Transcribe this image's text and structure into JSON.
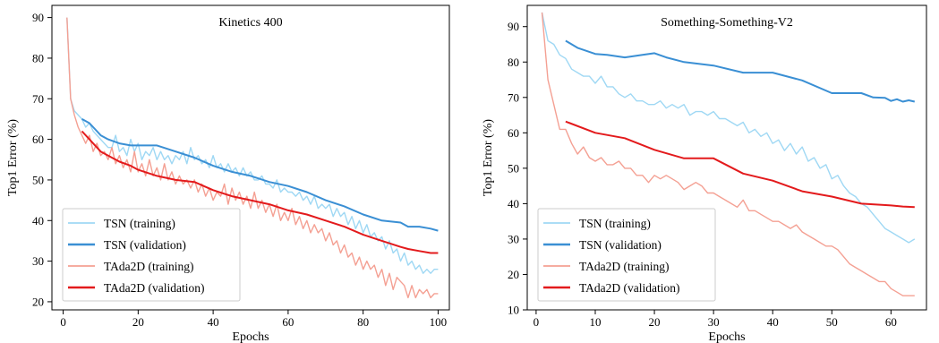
{
  "chart_data": [
    {
      "type": "line",
      "title": "Kinetics 400",
      "xlabel": "Epochs",
      "ylabel": "Top1 Error (%)",
      "xlim": [
        -3,
        103
      ],
      "ylim": [
        18,
        93
      ],
      "xticks": [
        0,
        20,
        40,
        60,
        80,
        100
      ],
      "yticks": [
        20,
        30,
        40,
        50,
        60,
        70,
        80,
        90
      ],
      "grid": false,
      "legend": "bottom-left",
      "series": [
        {
          "name": "TSN (training)",
          "color": "#9fd8f4",
          "width": 1.4,
          "x": [
            1,
            2,
            3,
            4,
            5,
            6,
            7,
            8,
            9,
            10,
            11,
            12,
            13,
            14,
            15,
            16,
            17,
            18,
            19,
            20,
            21,
            22,
            23,
            24,
            25,
            26,
            27,
            28,
            29,
            30,
            31,
            32,
            33,
            34,
            35,
            36,
            37,
            38,
            39,
            40,
            41,
            42,
            43,
            44,
            45,
            46,
            47,
            48,
            49,
            50,
            51,
            52,
            53,
            54,
            55,
            56,
            57,
            58,
            59,
            60,
            61,
            62,
            63,
            64,
            65,
            66,
            67,
            68,
            69,
            70,
            71,
            72,
            73,
            74,
            75,
            76,
            77,
            78,
            79,
            80,
            81,
            82,
            83,
            84,
            85,
            86,
            87,
            88,
            89,
            90,
            91,
            92,
            93,
            94,
            95,
            96,
            97,
            98,
            99,
            100
          ],
          "y": [
            90,
            70,
            67,
            66,
            65,
            63,
            64,
            62,
            61,
            60,
            59,
            58,
            58,
            61,
            57,
            58,
            56,
            60,
            57,
            59,
            55,
            57,
            56,
            58,
            55,
            57,
            55,
            56,
            54,
            56,
            55,
            57,
            54,
            58,
            55,
            56,
            54,
            55,
            53,
            56,
            53,
            54,
            52,
            54,
            52,
            53,
            51,
            53,
            51,
            52,
            50,
            50,
            51,
            49,
            49,
            48,
            50,
            47,
            48,
            47,
            47,
            46,
            47,
            45,
            46,
            44,
            46,
            43,
            44,
            43,
            44,
            41,
            43,
            41,
            42,
            39,
            41,
            38,
            40,
            37,
            39,
            36,
            37,
            35,
            36,
            33,
            35,
            32,
            33,
            30,
            32,
            29,
            30,
            28,
            29,
            27,
            28,
            27,
            28,
            28
          ]
        },
        {
          "name": "TSN (validation)",
          "color": "#3a8fd4",
          "width": 2,
          "x": [
            5,
            7,
            9,
            10,
            12,
            15,
            18,
            20,
            25,
            30,
            35,
            40,
            45,
            50,
            55,
            60,
            65,
            70,
            75,
            80,
            85,
            90,
            92,
            95,
            98,
            100
          ],
          "y": [
            65,
            64,
            62,
            61,
            60,
            59,
            58.5,
            58.5,
            58.5,
            57,
            55.5,
            53.5,
            52,
            51,
            49.5,
            48.5,
            47,
            45,
            43.5,
            41.5,
            40,
            39.5,
            38.5,
            38.5,
            38,
            37.5
          ]
        },
        {
          "name": "TAda2D (training)",
          "color": "#f4a093",
          "width": 1.4,
          "x": [
            1,
            2,
            3,
            4,
            5,
            6,
            7,
            8,
            9,
            10,
            11,
            12,
            13,
            14,
            15,
            16,
            17,
            18,
            19,
            20,
            21,
            22,
            23,
            24,
            25,
            26,
            27,
            28,
            29,
            30,
            31,
            32,
            33,
            34,
            35,
            36,
            37,
            38,
            39,
            40,
            41,
            42,
            43,
            44,
            45,
            46,
            47,
            48,
            49,
            50,
            51,
            52,
            53,
            54,
            55,
            56,
            57,
            58,
            59,
            60,
            61,
            62,
            63,
            64,
            65,
            66,
            67,
            68,
            69,
            70,
            71,
            72,
            73,
            74,
            75,
            76,
            77,
            78,
            79,
            80,
            81,
            82,
            83,
            84,
            85,
            86,
            87,
            88,
            89,
            90,
            91,
            92,
            93,
            94,
            95,
            96,
            97,
            98,
            99,
            100
          ],
          "y": [
            90,
            70,
            66,
            63,
            61,
            59,
            61,
            57,
            59,
            56,
            57,
            55,
            58,
            54,
            56,
            53,
            55,
            52,
            57,
            52,
            54,
            51,
            55,
            51,
            53,
            50,
            54,
            50,
            52,
            49,
            51,
            49,
            50,
            48,
            50,
            47,
            49,
            46,
            48,
            45,
            47,
            46,
            49,
            44,
            48,
            45,
            47,
            44,
            46,
            43,
            47,
            43,
            45,
            42,
            44,
            41,
            44,
            40,
            42,
            40,
            43,
            39,
            41,
            38,
            40,
            37,
            39,
            37,
            38,
            35,
            37,
            34,
            35,
            32,
            34,
            31,
            32,
            29,
            31,
            28,
            30,
            28,
            29,
            26,
            28,
            24,
            27,
            23,
            26,
            25,
            24,
            21,
            24,
            21,
            23,
            22,
            23,
            21,
            22,
            22
          ]
        },
        {
          "name": "TAda2D (validation)",
          "color": "#e31a1c",
          "width": 2,
          "x": [
            5,
            7,
            9,
            10,
            12,
            15,
            18,
            20,
            25,
            30,
            35,
            40,
            45,
            50,
            55,
            60,
            65,
            70,
            75,
            80,
            85,
            90,
            92,
            95,
            98,
            100
          ],
          "y": [
            62,
            60,
            58,
            57,
            56,
            54.5,
            53.5,
            52.5,
            51,
            50,
            49.5,
            47.5,
            46,
            45,
            44,
            42.5,
            41.5,
            40,
            38.5,
            36.5,
            35,
            33.5,
            33,
            32.5,
            32,
            32
          ]
        }
      ]
    },
    {
      "type": "line",
      "title": "Something-Something-V2",
      "xlabel": "Epochs",
      "ylabel": "Top1 Error (%)",
      "xlim": [
        -1.5,
        66
      ],
      "ylim": [
        10,
        96
      ],
      "xticks": [
        0,
        10,
        20,
        30,
        40,
        50,
        60
      ],
      "yticks": [
        10,
        20,
        30,
        40,
        50,
        60,
        70,
        80,
        90
      ],
      "grid": false,
      "legend": "bottom-left",
      "series": [
        {
          "name": "TSN (training)",
          "color": "#9fd8f4",
          "width": 1.4,
          "x": [
            1,
            2,
            3,
            4,
            5,
            6,
            7,
            8,
            9,
            10,
            11,
            12,
            13,
            14,
            15,
            16,
            17,
            18,
            19,
            20,
            21,
            22,
            23,
            24,
            25,
            26,
            27,
            28,
            29,
            30,
            31,
            32,
            33,
            34,
            35,
            36,
            37,
            38,
            39,
            40,
            41,
            42,
            43,
            44,
            45,
            46,
            47,
            48,
            49,
            50,
            51,
            52,
            53,
            54,
            55,
            56,
            57,
            58,
            59,
            60,
            61,
            62,
            63,
            64
          ],
          "y": [
            94,
            86,
            85,
            82,
            81,
            78,
            77,
            76,
            76,
            74,
            76,
            73,
            73,
            71,
            70,
            71,
            69,
            69,
            68,
            68,
            69,
            67,
            68,
            67,
            68,
            65,
            66,
            66,
            65,
            66,
            64,
            64,
            63,
            62,
            63,
            60,
            61,
            59,
            60,
            57,
            58,
            55,
            57,
            54,
            56,
            52,
            53,
            50,
            51,
            47,
            48,
            45,
            43,
            42,
            40,
            39,
            37,
            35,
            33,
            32,
            31,
            30,
            29,
            30
          ]
        },
        {
          "name": "TSN (validation)",
          "color": "#3a8fd4",
          "width": 2,
          "x": [
            5,
            7,
            10,
            12,
            15,
            18,
            20,
            22,
            25,
            30,
            35,
            40,
            45,
            50,
            52,
            55,
            57,
            59,
            60,
            61,
            62,
            63,
            64
          ],
          "y": [
            86,
            84,
            82.3,
            82,
            81.3,
            82,
            82.5,
            81.3,
            80,
            79,
            77,
            77,
            74.8,
            71.2,
            71.2,
            71.2,
            70,
            69.9,
            69,
            69.5,
            68.8,
            69.2,
            68.8
          ]
        },
        {
          "name": "TAda2D (training)",
          "color": "#f4a093",
          "width": 1.4,
          "x": [
            1,
            2,
            3,
            4,
            5,
            6,
            7,
            8,
            9,
            10,
            11,
            12,
            13,
            14,
            15,
            16,
            17,
            18,
            19,
            20,
            21,
            22,
            23,
            24,
            25,
            26,
            27,
            28,
            29,
            30,
            31,
            32,
            33,
            34,
            35,
            36,
            37,
            38,
            39,
            40,
            41,
            42,
            43,
            44,
            45,
            46,
            47,
            48,
            49,
            50,
            51,
            52,
            53,
            54,
            55,
            56,
            57,
            58,
            59,
            60,
            61,
            62,
            63,
            64
          ],
          "y": [
            94,
            75,
            68,
            61,
            61,
            57,
            54,
            56,
            53,
            52,
            53,
            51,
            51,
            52,
            50,
            50,
            48,
            48,
            46,
            48,
            47,
            48,
            47,
            46,
            44,
            45,
            46,
            45,
            43,
            43,
            42,
            41,
            40,
            39,
            41,
            38,
            38,
            37,
            36,
            35,
            35,
            34,
            33,
            34,
            32,
            31,
            30,
            29,
            28,
            28,
            27,
            25,
            23,
            22,
            21,
            20,
            19,
            18,
            18,
            16,
            15,
            14,
            14,
            14
          ]
        },
        {
          "name": "TAda2D (validation)",
          "color": "#e31a1c",
          "width": 2,
          "x": [
            5,
            10,
            15,
            20,
            25,
            30,
            35,
            40,
            45,
            50,
            55,
            60,
            62,
            64
          ],
          "y": [
            63.2,
            60,
            58.5,
            55.2,
            52.8,
            52.8,
            48.5,
            46.5,
            43.5,
            42,
            40,
            39.5,
            39.2,
            39
          ]
        }
      ]
    }
  ]
}
